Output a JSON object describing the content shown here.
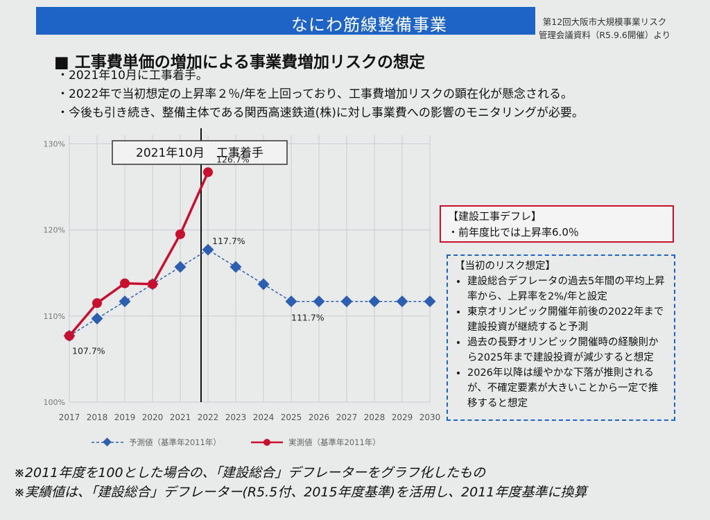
{
  "header": {
    "title": "なにわ筋線整備事業",
    "source_line1": "第12回大阪市大規模事業リスク",
    "source_line2": "管理会議資料（R5.9.6開催）より"
  },
  "section": {
    "heading": "■ 工事費単価の増加による事業費増加リスクの想定",
    "bullets": [
      "・2021年10月に工事着手。",
      "・2022年で当初想定の上昇率２％/年を上回っており、工事費増加リスクの顕在化が懸念される。",
      "・今後も引き続き、整備主体である関西高速鉄道(株)に対し事業費への影響のモニタリングが必要。"
    ]
  },
  "chart_data": {
    "type": "line",
    "x": [
      2017,
      2018,
      2019,
      2020,
      2021,
      2022,
      2023,
      2024,
      2025,
      2026,
      2027,
      2028,
      2029,
      2030
    ],
    "xticks": [
      "2017",
      "2018",
      "2019",
      "2020",
      "2021",
      "2022",
      "2023",
      "2024",
      "2025",
      "2026",
      "2027",
      "2028",
      "2029",
      "2030"
    ],
    "yticks": [
      "100%",
      "110%",
      "120%",
      "130%"
    ],
    "ytick_values": [
      100,
      110,
      120,
      130
    ],
    "ylim": [
      100,
      131
    ],
    "series": [
      {
        "name": "予測値（基準年2011年）",
        "color": "#2d5fb0",
        "style": "dashed-diamond",
        "x": [
          2017,
          2018,
          2019,
          2020,
          2021,
          2022,
          2023,
          2024,
          2025,
          2026,
          2027,
          2028,
          2029,
          2030
        ],
        "values": [
          107.7,
          109.7,
          111.7,
          113.7,
          115.7,
          117.7,
          115.7,
          113.7,
          111.7,
          111.7,
          111.7,
          111.7,
          111.7,
          111.7
        ]
      },
      {
        "name": "実測値（基準年2011年）",
        "color": "#c8102e",
        "style": "solid-circle",
        "x": [
          2017,
          2018,
          2019,
          2020,
          2021,
          2022
        ],
        "values": [
          107.7,
          111.5,
          113.8,
          113.7,
          119.5,
          126.7
        ]
      }
    ],
    "annotations": [
      {
        "text": "126.7%",
        "x": 2022,
        "y": 126.7
      },
      {
        "text": "117.7%",
        "x": 2022,
        "y": 117.7
      },
      {
        "text": "111.7%",
        "x": 2025,
        "y": 111.7
      },
      {
        "text": "107.7%",
        "x": 2017,
        "y": 107.7
      }
    ],
    "event_line": {
      "x": 2021.75,
      "label": "2021年10月　工事着手"
    },
    "grid": true
  },
  "callout_deflation": {
    "title": "【建設工事デフレ】",
    "text": "・前年度比では上昇率6.0％"
  },
  "callout_risk": {
    "title": "【当初のリスク想定】",
    "items": [
      "建設総合デフレータの過去5年間の平均上昇率から、上昇率を2%/年と設定",
      "東京オリンピック開催年前後の2022年まで建設投資が継続すると予測",
      "過去の長野オリンピック開催時の経験則から2025年まで建設投資が減少すると想定",
      "2026年以降は緩やかな下落が推則されるが、不確定要素が大きいことから一定で推移すると想定"
    ]
  },
  "footnotes": [
    "※2011年度を100とした場合の、「建設総合」デフレーターをグラフ化したもの",
    "※実績値は、「建設総合」デフレーター(R5.5付、2015年度基準)を活用し、2011年度基準に換算"
  ],
  "colors": {
    "header_blue": "#1d64c6",
    "forecast_blue": "#2d5fb0",
    "actual_red": "#c8102e"
  }
}
